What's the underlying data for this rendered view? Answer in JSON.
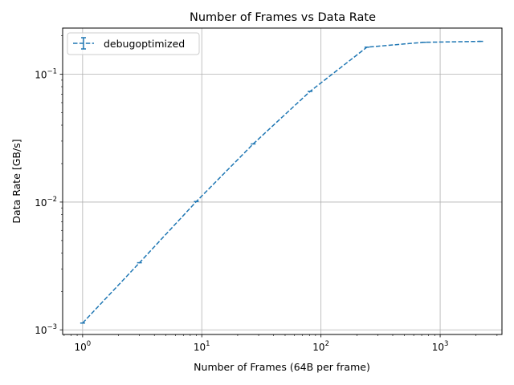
{
  "chart_data": {
    "type": "line",
    "title": "Number of Frames vs Data Rate",
    "xlabel": "Number of Frames (64B per frame)",
    "ylabel": "Data Rate [GB/s]",
    "xscale": "log",
    "yscale": "log",
    "xlim": [
      0.68,
      3300
    ],
    "ylim": [
      0.00092,
      0.23
    ],
    "grid": true,
    "legend_position": "top-left",
    "x_ticks": [
      {
        "value": 1,
        "base": "10",
        "exp": "0"
      },
      {
        "value": 10,
        "base": "10",
        "exp": "1"
      },
      {
        "value": 100,
        "base": "10",
        "exp": "2"
      },
      {
        "value": 1000,
        "base": "10",
        "exp": "3"
      }
    ],
    "y_ticks": [
      {
        "value": 0.001,
        "base": "10",
        "exp": "−3"
      },
      {
        "value": 0.01,
        "base": "10",
        "exp": "−2"
      },
      {
        "value": 0.1,
        "base": "10",
        "exp": "−1"
      }
    ],
    "series": [
      {
        "name": "debugoptimized",
        "color": "#1f77b4",
        "line_style": "dashed",
        "error_bars": true,
        "x": [
          1,
          3,
          9,
          27,
          81,
          243,
          729,
          2187
        ],
        "y": [
          0.00113,
          0.00335,
          0.0101,
          0.0285,
          0.0735,
          0.163,
          0.178,
          0.181
        ]
      }
    ]
  }
}
